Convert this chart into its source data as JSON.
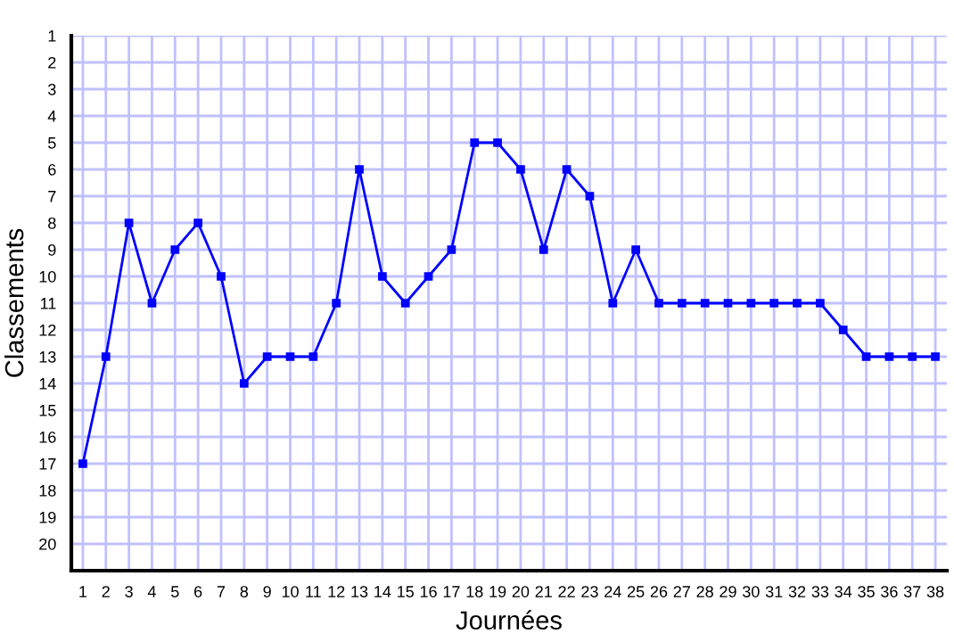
{
  "chart_data": {
    "type": "line",
    "xlabel": "Journées",
    "ylabel": "Classements",
    "x": [
      1,
      2,
      3,
      4,
      5,
      6,
      7,
      8,
      9,
      10,
      11,
      12,
      13,
      14,
      15,
      16,
      17,
      18,
      19,
      20,
      21,
      22,
      23,
      24,
      25,
      26,
      27,
      28,
      29,
      30,
      31,
      32,
      33,
      34,
      35,
      36,
      37,
      38
    ],
    "series": [
      {
        "color": "#0000ff",
        "values": [
          17,
          13,
          8,
          11,
          9,
          8,
          10,
          14,
          13,
          13,
          13,
          11,
          6,
          10,
          11,
          10,
          9,
          5,
          5,
          6,
          9,
          6,
          7,
          11,
          9,
          11,
          11,
          11,
          11,
          11,
          11,
          11,
          11,
          12,
          13,
          13,
          13,
          13
        ]
      }
    ],
    "xlim": [
      0.5,
      38.5
    ],
    "ylim": [
      21,
      1
    ],
    "xticks": [
      1,
      2,
      3,
      4,
      5,
      6,
      7,
      8,
      9,
      10,
      11,
      12,
      13,
      14,
      15,
      16,
      17,
      18,
      19,
      20,
      21,
      22,
      23,
      24,
      25,
      26,
      27,
      28,
      29,
      30,
      31,
      32,
      33,
      34,
      35,
      36,
      37,
      38
    ],
    "yticks": [
      1,
      2,
      3,
      4,
      5,
      6,
      7,
      8,
      9,
      10,
      11,
      12,
      13,
      14,
      15,
      16,
      17,
      18,
      19,
      20
    ],
    "grid": true,
    "marker": "square",
    "line_style": "solid"
  }
}
